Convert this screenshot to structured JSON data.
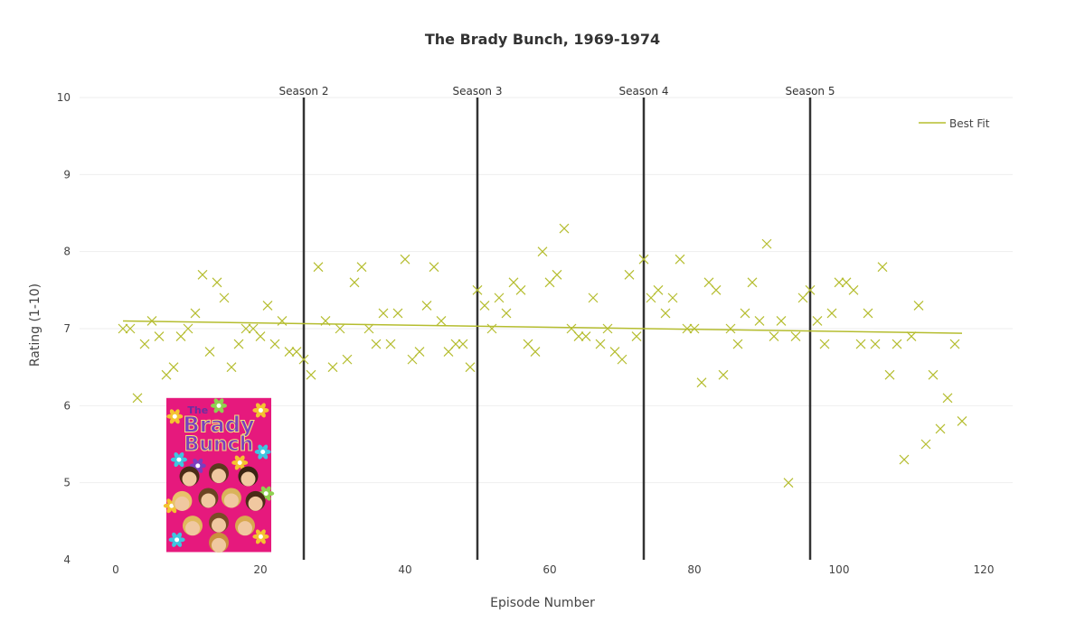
{
  "chart_data": {
    "type": "scatter",
    "title": "The Brady Bunch, 1969-1974",
    "xlabel": "Episode Number",
    "ylabel": "Rating (1-10)",
    "xlim": [
      -5,
      124
    ],
    "ylim": [
      4,
      10
    ],
    "xticks": [
      0,
      20,
      40,
      60,
      80,
      100,
      120
    ],
    "yticks": [
      4,
      5,
      6,
      7,
      8,
      9,
      10
    ],
    "grid": true,
    "legend_position": "top-right",
    "marker": "x",
    "series_color": "#b5bd2f",
    "season_line_color": "#333333",
    "points": [
      [
        1,
        7.0
      ],
      [
        2,
        7.0
      ],
      [
        3,
        6.1
      ],
      [
        4,
        6.8
      ],
      [
        5,
        7.1
      ],
      [
        6,
        6.9
      ],
      [
        7,
        6.4
      ],
      [
        8,
        6.5
      ],
      [
        9,
        6.9
      ],
      [
        10,
        7.0
      ],
      [
        11,
        7.2
      ],
      [
        12,
        7.7
      ],
      [
        13,
        6.7
      ],
      [
        14,
        7.6
      ],
      [
        15,
        7.4
      ],
      [
        16,
        6.5
      ],
      [
        17,
        6.8
      ],
      [
        18,
        7.0
      ],
      [
        19,
        7.0
      ],
      [
        20,
        6.9
      ],
      [
        21,
        7.3
      ],
      [
        22,
        6.8
      ],
      [
        23,
        7.1
      ],
      [
        24,
        6.7
      ],
      [
        25,
        6.7
      ],
      [
        26,
        6.6
      ],
      [
        27,
        6.4
      ],
      [
        28,
        7.8
      ],
      [
        29,
        7.1
      ],
      [
        30,
        6.5
      ],
      [
        31,
        7.0
      ],
      [
        32,
        6.6
      ],
      [
        33,
        7.6
      ],
      [
        34,
        7.8
      ],
      [
        35,
        7.0
      ],
      [
        36,
        6.8
      ],
      [
        37,
        7.2
      ],
      [
        38,
        6.8
      ],
      [
        39,
        7.2
      ],
      [
        40,
        7.9
      ],
      [
        41,
        6.6
      ],
      [
        42,
        6.7
      ],
      [
        43,
        7.3
      ],
      [
        44,
        7.8
      ],
      [
        45,
        7.1
      ],
      [
        46,
        6.7
      ],
      [
        47,
        6.8
      ],
      [
        48,
        6.8
      ],
      [
        49,
        6.5
      ],
      [
        50,
        7.5
      ],
      [
        51,
        7.3
      ],
      [
        52,
        7.0
      ],
      [
        53,
        7.4
      ],
      [
        54,
        7.2
      ],
      [
        55,
        7.6
      ],
      [
        56,
        7.5
      ],
      [
        57,
        6.8
      ],
      [
        58,
        6.7
      ],
      [
        59,
        8.0
      ],
      [
        60,
        7.6
      ],
      [
        61,
        7.7
      ],
      [
        62,
        8.3
      ],
      [
        63,
        7.0
      ],
      [
        64,
        6.9
      ],
      [
        65,
        6.9
      ],
      [
        66,
        7.4
      ],
      [
        67,
        6.8
      ],
      [
        68,
        7.0
      ],
      [
        69,
        6.7
      ],
      [
        70,
        6.6
      ],
      [
        71,
        7.7
      ],
      [
        72,
        6.9
      ],
      [
        73,
        7.9
      ],
      [
        74,
        7.4
      ],
      [
        75,
        7.5
      ],
      [
        76,
        7.2
      ],
      [
        77,
        7.4
      ],
      [
        78,
        7.9
      ],
      [
        79,
        7.0
      ],
      [
        80,
        7.0
      ],
      [
        81,
        6.3
      ],
      [
        82,
        7.6
      ],
      [
        83,
        7.5
      ],
      [
        84,
        6.4
      ],
      [
        85,
        7.0
      ],
      [
        86,
        6.8
      ],
      [
        87,
        7.2
      ],
      [
        88,
        7.6
      ],
      [
        89,
        7.1
      ],
      [
        90,
        8.1
      ],
      [
        91,
        6.9
      ],
      [
        92,
        7.1
      ],
      [
        93,
        5.0
      ],
      [
        94,
        6.9
      ],
      [
        95,
        7.4
      ],
      [
        96,
        7.5
      ],
      [
        97,
        7.1
      ],
      [
        98,
        6.8
      ],
      [
        99,
        7.2
      ],
      [
        100,
        7.6
      ],
      [
        101,
        7.6
      ],
      [
        102,
        7.5
      ],
      [
        103,
        6.8
      ],
      [
        104,
        7.2
      ],
      [
        105,
        6.8
      ],
      [
        106,
        7.8
      ],
      [
        107,
        6.4
      ],
      [
        108,
        6.8
      ],
      [
        109,
        5.3
      ],
      [
        110,
        6.9
      ],
      [
        111,
        7.3
      ],
      [
        112,
        5.5
      ],
      [
        113,
        6.4
      ],
      [
        114,
        5.7
      ],
      [
        115,
        6.1
      ],
      [
        116,
        6.8
      ],
      [
        117,
        5.8
      ]
    ],
    "best_fit": {
      "name": "Best Fit",
      "x": [
        1,
        117
      ],
      "y": [
        7.1,
        6.94
      ]
    },
    "seasons": [
      {
        "label": "Season 2",
        "x": 26
      },
      {
        "label": "Season 3",
        "x": 50
      },
      {
        "label": "Season 4",
        "x": 73
      },
      {
        "label": "Season 5",
        "x": 96
      }
    ]
  },
  "poster": {
    "title_line1": "The",
    "title_line2": "Brady",
    "title_line3": "Bunch",
    "background_color": "#e6197d",
    "x_range": [
      7,
      21.5
    ],
    "y_range": [
      4.1,
      6.1
    ]
  }
}
